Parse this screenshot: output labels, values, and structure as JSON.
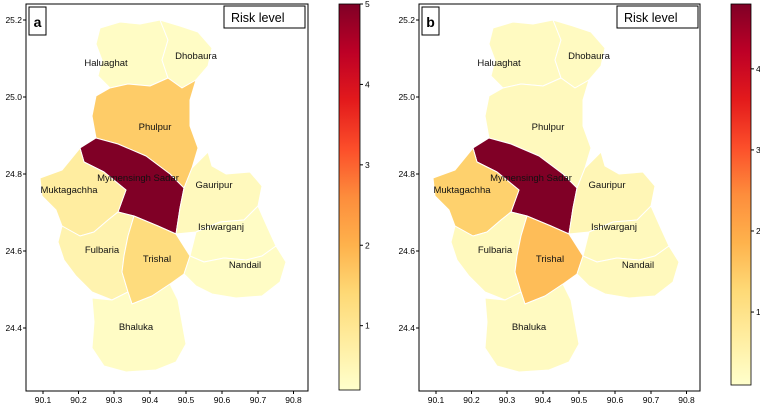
{
  "panels": [
    {
      "id": "a",
      "label": "a",
      "legend_title": "Risk level",
      "x_ticks": [
        "90.1",
        "90.2",
        "90.3",
        "90.4",
        "90.5",
        "90.6",
        "90.7",
        "90.8"
      ],
      "y_ticks": [
        "25.2",
        "25.0",
        "24.8",
        "24.6",
        "24.4"
      ],
      "colorbar_ticks": [
        "1",
        "2",
        "3",
        "4",
        "5"
      ],
      "colorbar_range": [
        0.2,
        5.0
      ],
      "regions": [
        {
          "name": "Haluaghat",
          "risk": 0.3
        },
        {
          "name": "Dhobaura",
          "risk": 0.3
        },
        {
          "name": "Phulpur",
          "risk": 1.6
        },
        {
          "name": "Mymensingh Sadar",
          "risk": 5.0
        },
        {
          "name": "Muktagachha",
          "risk": 0.8
        },
        {
          "name": "Gauripur",
          "risk": 0.4
        },
        {
          "name": "Ishwarganj",
          "risk": 0.3
        },
        {
          "name": "Fulbaria",
          "risk": 0.6
        },
        {
          "name": "Trishal",
          "risk": 1.3
        },
        {
          "name": "Nandail",
          "risk": 0.3
        },
        {
          "name": "Bhaluka",
          "risk": 0.3
        }
      ]
    },
    {
      "id": "b",
      "label": "b",
      "legend_title": "Risk level",
      "x_ticks": [
        "90.1",
        "90.2",
        "90.3",
        "90.4",
        "90.5",
        "90.6",
        "90.7",
        "90.8"
      ],
      "y_ticks": [
        "25.2",
        "25.0",
        "24.8",
        "24.6",
        "24.4"
      ],
      "colorbar_ticks": [
        "1",
        "2",
        "3",
        "4"
      ],
      "colorbar_range": [
        0.1,
        4.8
      ],
      "regions": [
        {
          "name": "Haluaghat",
          "risk": 0.25
        },
        {
          "name": "Dhobaura",
          "risk": 0.25
        },
        {
          "name": "Phulpur",
          "risk": 0.3
        },
        {
          "name": "Mymensingh Sadar",
          "risk": 4.8
        },
        {
          "name": "Muktagachha",
          "risk": 1.4
        },
        {
          "name": "Gauripur",
          "risk": 0.4
        },
        {
          "name": "Ishwarganj",
          "risk": 0.3
        },
        {
          "name": "Fulbaria",
          "risk": 0.3
        },
        {
          "name": "Trishal",
          "risk": 1.7
        },
        {
          "name": "Nandail",
          "risk": 0.3
        },
        {
          "name": "Bhaluka",
          "risk": 0.25
        }
      ]
    }
  ],
  "colormap": [
    "#ffffcc",
    "#ffeda0",
    "#fed976",
    "#feb24c",
    "#fd8d3c",
    "#fc4e2a",
    "#e31a1c",
    "#bd0026",
    "#800026"
  ]
}
